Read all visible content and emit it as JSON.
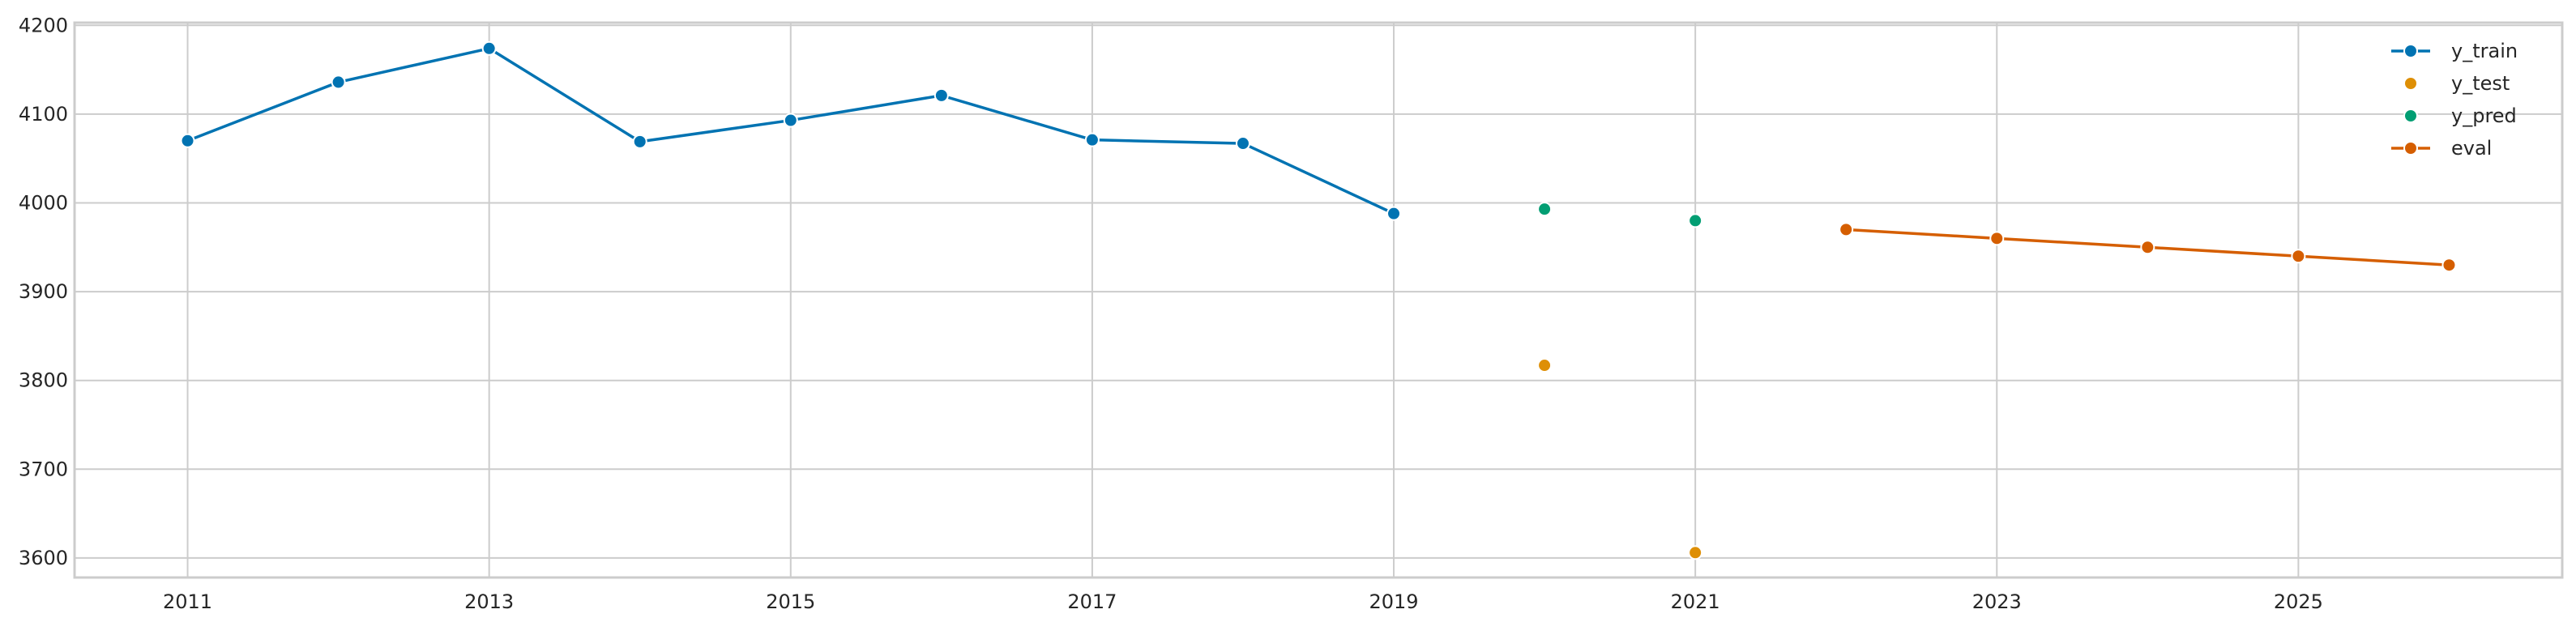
{
  "chart_data": {
    "type": "line",
    "title": "",
    "xlabel": "",
    "ylabel": "",
    "xlim": [
      2010.25,
      2026.75
    ],
    "ylim": [
      3578,
      4203
    ],
    "grid": true,
    "legend_position": "top-right",
    "x_ticks": [
      "2011",
      "2013",
      "2015",
      "2017",
      "2019",
      "2021",
      "2023",
      "2025"
    ],
    "y_ticks": [
      "3600",
      "3700",
      "3800",
      "3900",
      "4000",
      "4100",
      "4200"
    ],
    "series": [
      {
        "name": "y_train",
        "style": "line-marker",
        "color": "#0173b2",
        "x": [
          2011,
          2012,
          2013,
          2014,
          2015,
          2016,
          2017,
          2018,
          2019
        ],
        "y": [
          4070,
          4136,
          4174,
          4069,
          4093,
          4121,
          4071,
          4067,
          3988
        ]
      },
      {
        "name": "y_test",
        "style": "marker",
        "color": "#de8f05",
        "x": [
          2020,
          2021
        ],
        "y": [
          3817,
          3606
        ]
      },
      {
        "name": "y_pred",
        "style": "marker",
        "color": "#029e73",
        "x": [
          2020,
          2021
        ],
        "y": [
          3993,
          3980
        ]
      },
      {
        "name": "eval",
        "style": "line-marker",
        "color": "#d55e00",
        "x": [
          2022,
          2023,
          2024,
          2025,
          2026
        ],
        "y": [
          3970,
          3960,
          3950,
          3940,
          3930
        ]
      }
    ]
  }
}
